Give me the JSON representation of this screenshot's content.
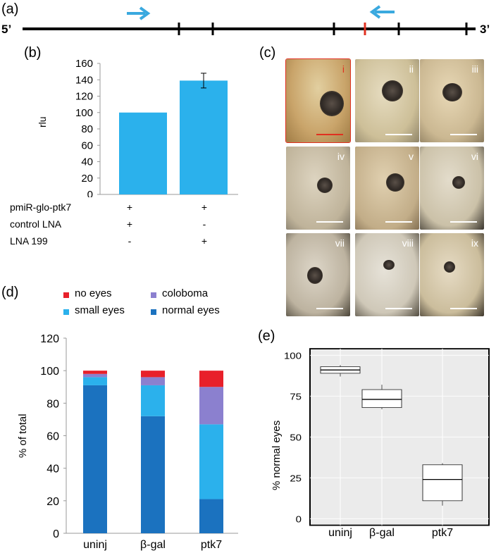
{
  "panels": {
    "a": "(a)",
    "b": "(b)",
    "c": "(c)",
    "d": "(d)",
    "e": "(e)"
  },
  "gene_map": {
    "five_prime": "5’",
    "three_prime": "3’"
  },
  "colors": {
    "arrow": "#3aa9df",
    "bar_b": "#2bb1ec",
    "no_eyes": "#e8202a",
    "coloboma": "#8b80cf",
    "small_eyes": "#2bb1ec",
    "normal_eyes": "#1b72bf",
    "scale_red": "#e03020",
    "boxplot_bg": "#ebebeb"
  },
  "table_b": {
    "rows": [
      {
        "label": "pmiR-glo-ptk7",
        "c1": "+",
        "c2": "+"
      },
      {
        "label": "control LNA",
        "c1": "+",
        "c2": "-"
      },
      {
        "label": "LNA 199",
        "c1": "-",
        "c2": "+"
      }
    ]
  },
  "embryo_photos": {
    "labels": [
      "i",
      "ii",
      "iii",
      "iv",
      "v",
      "vi",
      "vii",
      "viii",
      "ix"
    ]
  },
  "legend_d": {
    "items": [
      {
        "key": "no_eyes",
        "label": "no eyes"
      },
      {
        "key": "coloboma",
        "label": "coloboma"
      },
      {
        "key": "small_eyes",
        "label": "small eyes"
      },
      {
        "key": "normal_eyes",
        "label": "normal eyes"
      }
    ]
  },
  "chart_data": [
    {
      "id": "b",
      "type": "bar",
      "categories": [
        "",
        ""
      ],
      "values": [
        100,
        139
      ],
      "error": [
        0,
        9
      ],
      "ylabel": "rlu",
      "ylim": [
        0,
        160
      ],
      "yticks": [
        "0",
        "20",
        "40",
        "60",
        "80",
        "100",
        "120",
        "140",
        "160"
      ]
    },
    {
      "id": "d",
      "type": "bar",
      "stacked": true,
      "categories": [
        "uninj",
        "β-gal",
        "ptk7"
      ],
      "series": [
        {
          "name": "normal eyes",
          "values": [
            91,
            72,
            21
          ]
        },
        {
          "name": "small eyes",
          "values": [
            5,
            19,
            46
          ]
        },
        {
          "name": "coloboma",
          "values": [
            2,
            5,
            23
          ]
        },
        {
          "name": "no eyes",
          "values": [
            2,
            4,
            10
          ]
        }
      ],
      "ylabel": "% of total",
      "ylim": [
        0,
        120
      ],
      "yticks": [
        "0",
        "20",
        "40",
        "60",
        "80",
        "100",
        "120"
      ]
    },
    {
      "id": "e",
      "type": "boxplot",
      "categories": [
        "uninj",
        "β-gal",
        "ptk7"
      ],
      "boxes": [
        {
          "min": 87,
          "q1": 89,
          "median": 91,
          "q3": 93,
          "max": 94
        },
        {
          "min": 67,
          "q1": 68,
          "median": 73,
          "q3": 79,
          "max": 82
        },
        {
          "min": 8,
          "q1": 11,
          "median": 24,
          "q3": 33,
          "max": 34
        }
      ],
      "ylabel": "% normal eyes",
      "ylim": [
        0,
        100
      ],
      "yticks": [
        "0",
        "25",
        "50",
        "75",
        "100"
      ]
    }
  ]
}
